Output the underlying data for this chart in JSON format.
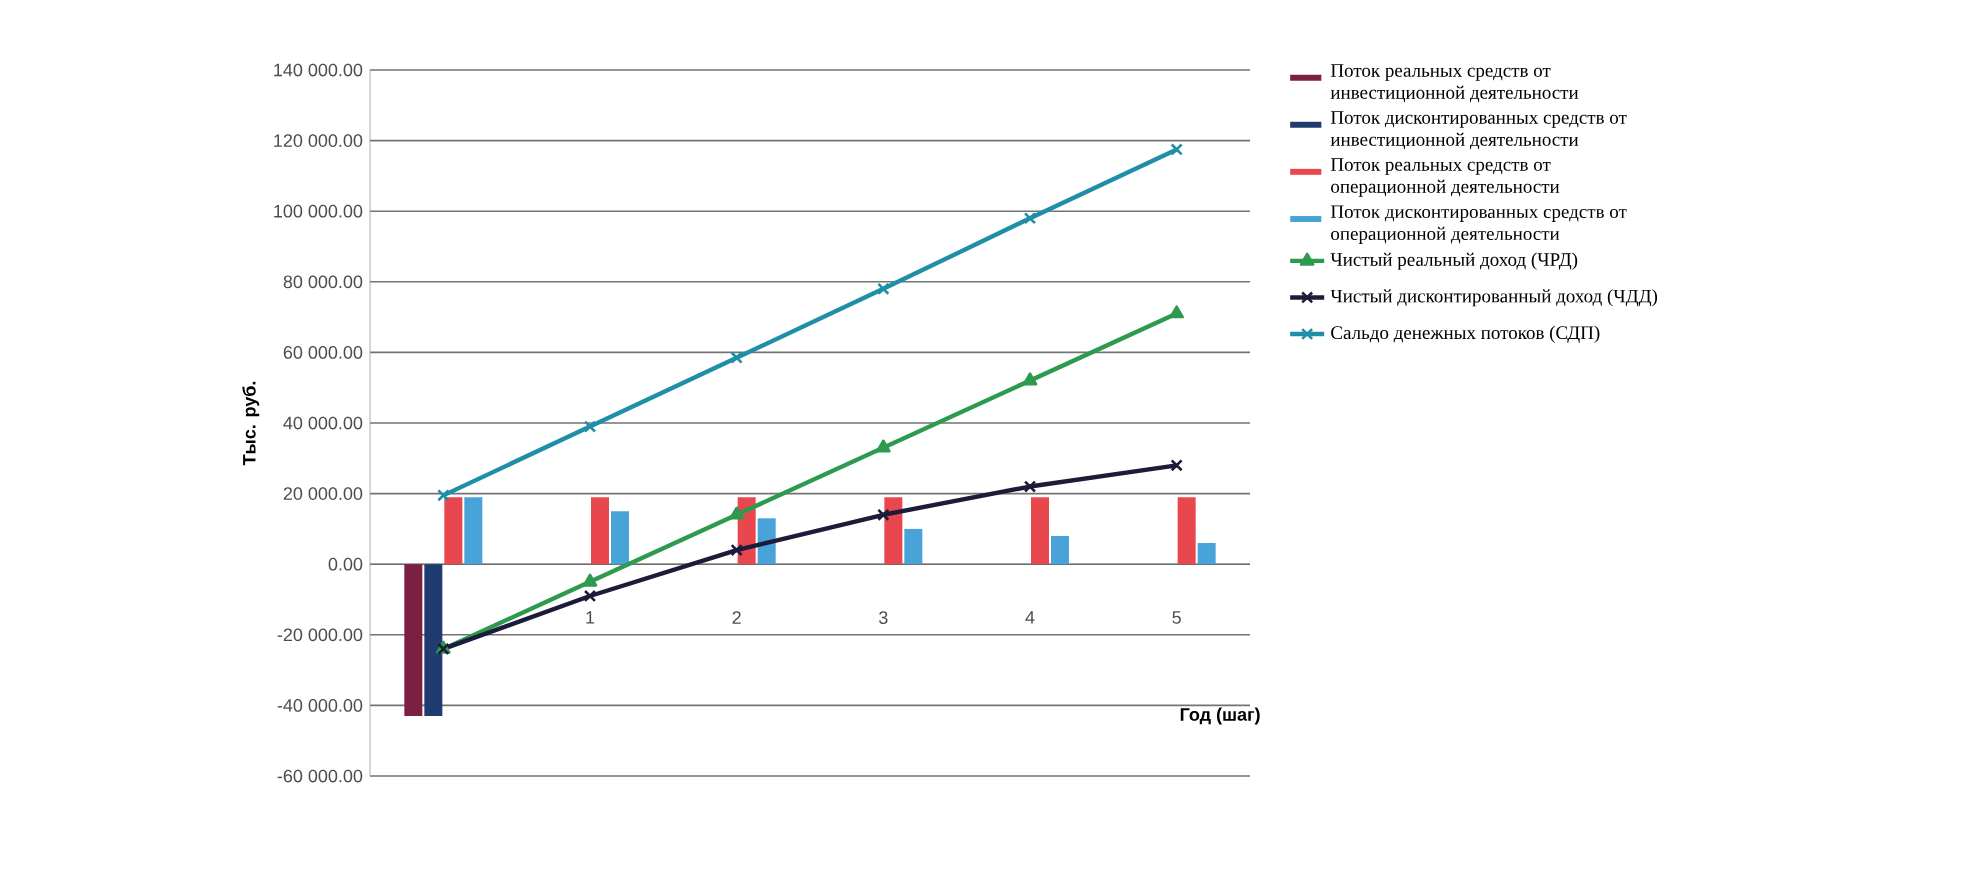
{
  "chart_data": {
    "type": "bar",
    "xlabel": "Год (шаг)",
    "ylabel": "Тыс. руб.",
    "categories": [
      null,
      "1",
      "2",
      "3",
      "4",
      "5"
    ],
    "ylim": [
      -60000,
      140000
    ],
    "yticks": [
      {
        "value": -60000,
        "label": "-60 000.00"
      },
      {
        "value": -40000,
        "label": "-40 000.00"
      },
      {
        "value": -20000,
        "label": "-20 000.00"
      },
      {
        "value": 0,
        "label": "0.00"
      },
      {
        "value": 20000,
        "label": "20 000.00"
      },
      {
        "value": 40000,
        "label": "40 000.00"
      },
      {
        "value": 60000,
        "label": "60 000.00"
      },
      {
        "value": 80000,
        "label": "80 000.00"
      },
      {
        "value": 100000,
        "label": "100 000.00"
      },
      {
        "value": 120000,
        "label": "120 000.00"
      },
      {
        "value": 140000,
        "label": "140 000.00"
      }
    ],
    "grid": "y",
    "legend": "right",
    "series": [
      {
        "name": "Поток реальных средств от инвестиционной деятельности",
        "color": "#7b2042",
        "values": [
          -43000,
          0,
          0,
          0,
          0,
          0
        ]
      },
      {
        "name": "Поток дисконтированных средств от инвестиционной деятельности",
        "color": "#1f3b70",
        "values": [
          -43000,
          0,
          0,
          0,
          0,
          0
        ]
      },
      {
        "name": "Поток реальных средств от операционной деятельности",
        "color": "#e8474e",
        "values": [
          19000,
          19000,
          19000,
          19000,
          19000,
          19000
        ]
      },
      {
        "name": "Поток дисконтированных средств от операционной деятельности",
        "color": "#4aa3d8",
        "values": [
          19000,
          15000,
          13000,
          10000,
          8000,
          6000
        ]
      },
      {
        "name": "Чистый реальный доход (ЧРД)",
        "type": "line",
        "marker": "triangle",
        "color": "#2e9a4e",
        "values": [
          -24000,
          -5000,
          14000,
          33000,
          52000,
          71000
        ]
      },
      {
        "name": "Чистый дисконтированный доход (ЧДД)",
        "type": "line",
        "marker": "cross",
        "color": "#1c1c3a",
        "values": [
          -24000,
          -9000,
          4000,
          14000,
          22000,
          28000
        ]
      },
      {
        "name": "Сальдо денежных потоков (СДП)",
        "type": "line",
        "marker": "cross",
        "color": "#1f8fa8",
        "values": [
          19500,
          39000,
          58500,
          78000,
          98000,
          117500
        ]
      }
    ]
  }
}
